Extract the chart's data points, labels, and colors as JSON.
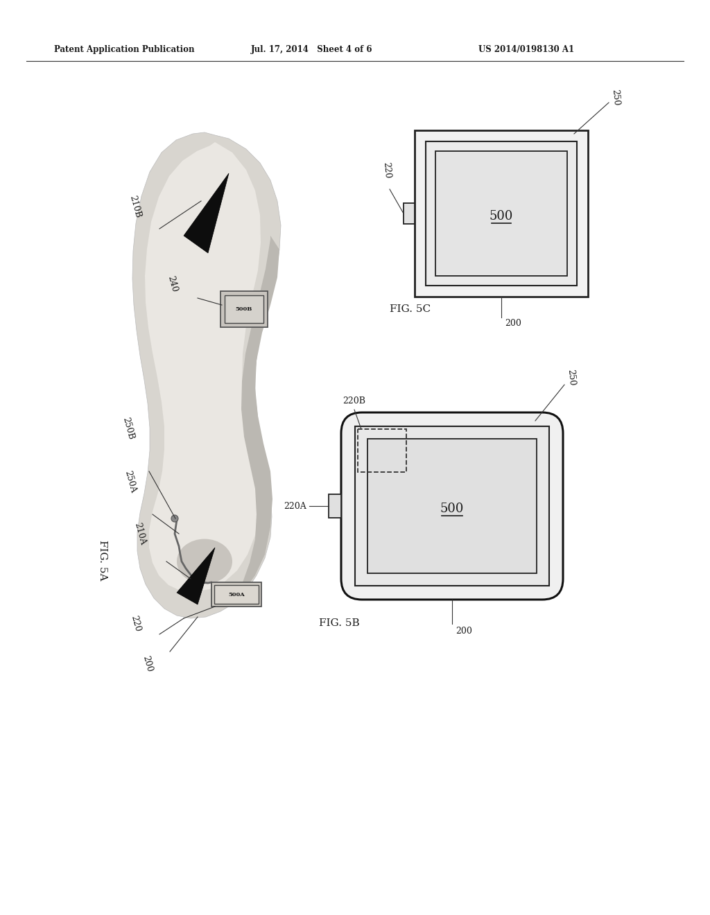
{
  "header_left": "Patent Application Publication",
  "header_mid": "Jul. 17, 2014   Sheet 4 of 6",
  "header_right": "US 2014/0198130 A1",
  "bg_color": "#ffffff",
  "text_color": "#1a1a1a",
  "fig5a_label": "FIG. 5A",
  "fig5b_label": "FIG. 5B",
  "fig5c_label": "FIG. 5C"
}
